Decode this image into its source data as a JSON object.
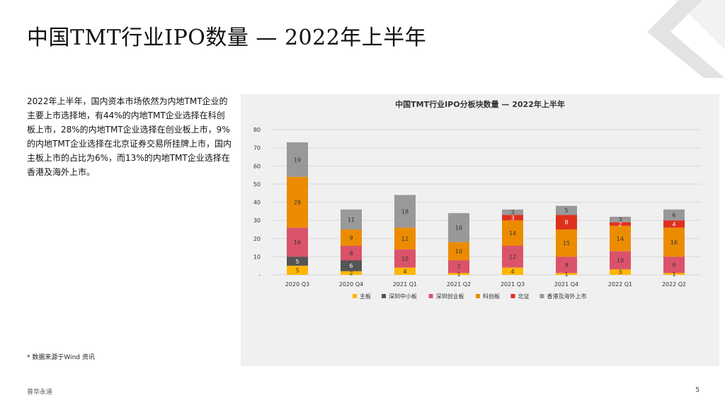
{
  "slide": {
    "title": "中国TMT行业IPO数量 — 2022年上半年",
    "paragraph": "2022年上半年，国内资本市场依然为内地TMT企业的主要上市选择地，有44%的内地TMT企业选择在科创板上市，28%的内地TMT企业选择在创业板上市，9%的内地TMT企业选择在北京证券交易所挂牌上市，国内主板上市的占比为6%，而13%的内地TMT企业选择在香港及海外上市。",
    "footnote": "* 数据来源于Wind 资讯",
    "brand": "普华永道",
    "page_number": "5"
  },
  "colors": {
    "主板": "#ffb600",
    "深圳中小板": "#555555",
    "深圳创业板": "#db536a",
    "科创板": "#eb8c00",
    "北证": "#e0301e",
    "香港及海外上市": "#999999",
    "grid": "#d9d9d9",
    "text": "#333333",
    "deco_dark": "#e3e3e3",
    "deco_light": "#f2f2f2"
  },
  "chart_data": {
    "type": "bar",
    "stacked": true,
    "title": "中国TMT行业IPO分板块数量 — 2022年上半年",
    "categories": [
      "2020 Q3",
      "2020 Q4",
      "2021 Q1",
      "2021 Q2",
      "2021 Q3",
      "2021 Q4",
      "2022 Q1",
      "2022 Q2"
    ],
    "ylim": [
      0,
      80
    ],
    "yticks": [
      0,
      10,
      20,
      30,
      40,
      50,
      60,
      70,
      80
    ],
    "ytick_labels": [
      "-",
      "10",
      "20",
      "30",
      "40",
      "50",
      "60",
      "70",
      "80"
    ],
    "grid": true,
    "legend_position": "bottom",
    "series": [
      {
        "name": "主板",
        "values": [
          5,
          2,
          4,
          1,
          4,
          1,
          3,
          1
        ],
        "labels": [
          "5",
          "2",
          "4",
          "1",
          "4",
          "1",
          "3",
          "1"
        ]
      },
      {
        "name": "深圳中小板",
        "values": [
          5,
          6,
          0,
          0,
          0,
          0,
          0,
          0
        ],
        "labels": [
          "5",
          "6",
          "",
          "",
          "",
          "",
          "",
          ""
        ]
      },
      {
        "name": "深圳创业板",
        "values": [
          16,
          8,
          10,
          7,
          12,
          9,
          10,
          9
        ],
        "labels": [
          "16",
          "8",
          "10",
          "7",
          "12",
          "9",
          "10",
          "9"
        ]
      },
      {
        "name": "科创板",
        "values": [
          28,
          9,
          12,
          10,
          14,
          15,
          14,
          16
        ],
        "labels": [
          "28",
          "9",
          "12",
          "10",
          "14",
          "15",
          "14",
          "16"
        ]
      },
      {
        "name": "北证",
        "values": [
          0,
          0,
          0,
          0,
          3,
          8,
          2,
          4
        ],
        "labels": [
          "",
          "",
          "",
          "",
          "3",
          "8",
          "2",
          "4"
        ]
      },
      {
        "name": "香港及海外上市",
        "values": [
          19,
          11,
          18,
          16,
          3,
          5,
          3,
          6
        ],
        "labels": [
          "19",
          "11",
          "18",
          "16",
          "3",
          "5",
          "3",
          "6"
        ]
      }
    ]
  }
}
